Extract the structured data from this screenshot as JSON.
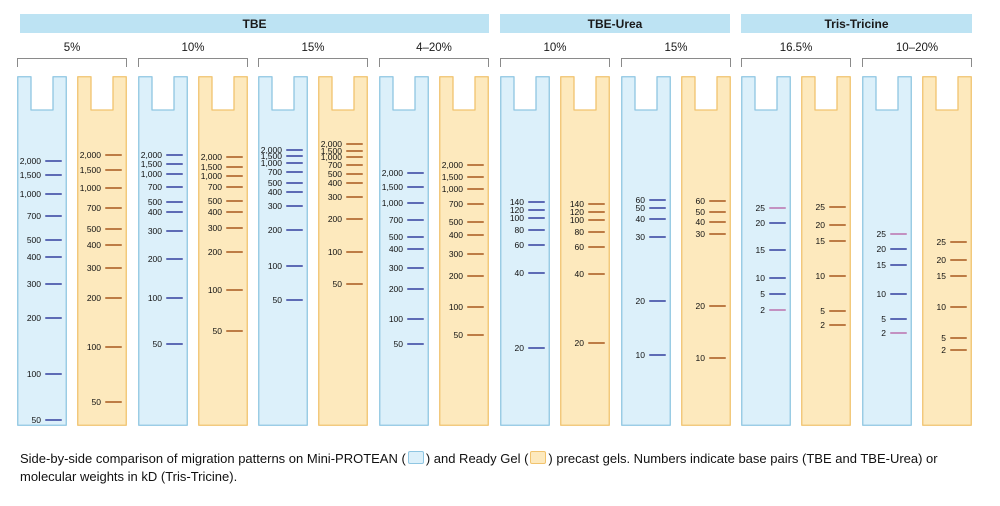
{
  "colors": {
    "header_bg": "#bde3f3",
    "mini_fill": "#dcf0fa",
    "mini_stroke": "#8fc6e2",
    "mini_band": "#5d6bb5",
    "ready_fill": "#fde9bd",
    "ready_stroke": "#f1c36e",
    "ready_band": "#bd7c45",
    "tris_band": "#c391c1"
  },
  "groups": [
    {
      "label": "TBE",
      "concentrations": [
        "5%",
        "10%",
        "15%",
        "4–20%"
      ]
    },
    {
      "label": "TBE-Urea",
      "concentrations": [
        "10%",
        "15%"
      ]
    },
    {
      "label": "Tris-Tricine",
      "concentrations": [
        "16.5%",
        "10–20%"
      ]
    }
  ],
  "lanes": [
    {
      "type": "mini",
      "bands": [
        {
          "label": "2,000",
          "pos": 85
        },
        {
          "label": "1,500",
          "pos": 99
        },
        {
          "label": "1,000",
          "pos": 118
        },
        {
          "label": "700",
          "pos": 140
        },
        {
          "label": "500",
          "pos": 164
        },
        {
          "label": "400",
          "pos": 181
        },
        {
          "label": "300",
          "pos": 208
        },
        {
          "label": "200",
          "pos": 242
        },
        {
          "label": "100",
          "pos": 298
        },
        {
          "label": "50",
          "pos": 344
        }
      ]
    },
    {
      "type": "ready",
      "bands": [
        {
          "label": "2,000",
          "pos": 79
        },
        {
          "label": "1,500",
          "pos": 94
        },
        {
          "label": "1,000",
          "pos": 112
        },
        {
          "label": "700",
          "pos": 132
        },
        {
          "label": "500",
          "pos": 153
        },
        {
          "label": "400",
          "pos": 169
        },
        {
          "label": "300",
          "pos": 192
        },
        {
          "label": "200",
          "pos": 222
        },
        {
          "label": "100",
          "pos": 271
        },
        {
          "label": "50",
          "pos": 326
        }
      ]
    },
    {
      "type": "mini",
      "bands": [
        {
          "label": "2,000",
          "pos": 79
        },
        {
          "label": "1,500",
          "pos": 88
        },
        {
          "label": "1,000",
          "pos": 98
        },
        {
          "label": "700",
          "pos": 111
        },
        {
          "label": "500",
          "pos": 126
        },
        {
          "label": "400",
          "pos": 136
        },
        {
          "label": "300",
          "pos": 155
        },
        {
          "label": "200",
          "pos": 183
        },
        {
          "label": "100",
          "pos": 222
        },
        {
          "label": "50",
          "pos": 268
        }
      ]
    },
    {
      "type": "ready",
      "bands": [
        {
          "label": "2,000",
          "pos": 81
        },
        {
          "label": "1,500",
          "pos": 91
        },
        {
          "label": "1,000",
          "pos": 100
        },
        {
          "label": "700",
          "pos": 111
        },
        {
          "label": "500",
          "pos": 125
        },
        {
          "label": "400",
          "pos": 136
        },
        {
          "label": "300",
          "pos": 152
        },
        {
          "label": "200",
          "pos": 176
        },
        {
          "label": "100",
          "pos": 214
        },
        {
          "label": "50",
          "pos": 255
        }
      ]
    },
    {
      "type": "mini",
      "bands": [
        {
          "label": "2,000",
          "pos": 74
        },
        {
          "label": "1,500",
          "pos": 80
        },
        {
          "label": "1,000",
          "pos": 87
        },
        {
          "label": "700",
          "pos": 96
        },
        {
          "label": "500",
          "pos": 107
        },
        {
          "label": "400",
          "pos": 116
        },
        {
          "label": "300",
          "pos": 130
        },
        {
          "label": "200",
          "pos": 154
        },
        {
          "label": "100",
          "pos": 190
        },
        {
          "label": "50",
          "pos": 224
        }
      ]
    },
    {
      "type": "ready",
      "bands": [
        {
          "label": "2,000",
          "pos": 68
        },
        {
          "label": "1,500",
          "pos": 75
        },
        {
          "label": "1,000",
          "pos": 81
        },
        {
          "label": "700",
          "pos": 89
        },
        {
          "label": "500",
          "pos": 98
        },
        {
          "label": "400",
          "pos": 107
        },
        {
          "label": "300",
          "pos": 121
        },
        {
          "label": "200",
          "pos": 143
        },
        {
          "label": "100",
          "pos": 176
        },
        {
          "label": "50",
          "pos": 208
        }
      ]
    },
    {
      "type": "mini",
      "bands": [
        {
          "label": "2,000",
          "pos": 97
        },
        {
          "label": "1,500",
          "pos": 111
        },
        {
          "label": "1,000",
          "pos": 127
        },
        {
          "label": "700",
          "pos": 144
        },
        {
          "label": "500",
          "pos": 161
        },
        {
          "label": "400",
          "pos": 173
        },
        {
          "label": "300",
          "pos": 192
        },
        {
          "label": "200",
          "pos": 213
        },
        {
          "label": "100",
          "pos": 243
        },
        {
          "label": "50",
          "pos": 268
        }
      ]
    },
    {
      "type": "ready",
      "bands": [
        {
          "label": "2,000",
          "pos": 89
        },
        {
          "label": "1,500",
          "pos": 101
        },
        {
          "label": "1,000",
          "pos": 113
        },
        {
          "label": "700",
          "pos": 128
        },
        {
          "label": "500",
          "pos": 146
        },
        {
          "label": "400",
          "pos": 159
        },
        {
          "label": "300",
          "pos": 178
        },
        {
          "label": "200",
          "pos": 200
        },
        {
          "label": "100",
          "pos": 231
        },
        {
          "label": "50",
          "pos": 259
        }
      ]
    },
    {
      "type": "mini",
      "bands": [
        {
          "label": "140",
          "pos": 126
        },
        {
          "label": "120",
          "pos": 134
        },
        {
          "label": "100",
          "pos": 142
        },
        {
          "label": "80",
          "pos": 154
        },
        {
          "label": "60",
          "pos": 169
        },
        {
          "label": "40",
          "pos": 197
        },
        {
          "label": "20",
          "pos": 272
        }
      ]
    },
    {
      "type": "ready",
      "bands": [
        {
          "label": "140",
          "pos": 128
        },
        {
          "label": "120",
          "pos": 136
        },
        {
          "label": "100",
          "pos": 144
        },
        {
          "label": "80",
          "pos": 156
        },
        {
          "label": "60",
          "pos": 171
        },
        {
          "label": "40",
          "pos": 198
        },
        {
          "label": "20",
          "pos": 267
        }
      ]
    },
    {
      "type": "mini",
      "bands": [
        {
          "label": "60",
          "pos": 124
        },
        {
          "label": "50",
          "pos": 132
        },
        {
          "label": "40",
          "pos": 143
        },
        {
          "label": "30",
          "pos": 161
        },
        {
          "label": "20",
          "pos": 225
        },
        {
          "label": "10",
          "pos": 279
        }
      ]
    },
    {
      "type": "ready",
      "bands": [
        {
          "label": "60",
          "pos": 125
        },
        {
          "label": "50",
          "pos": 136
        },
        {
          "label": "40",
          "pos": 146
        },
        {
          "label": "30",
          "pos": 158
        },
        {
          "label": "20",
          "pos": 230
        },
        {
          "label": "10",
          "pos": 282
        }
      ]
    },
    {
      "type": "mini",
      "bands": [
        {
          "label": "25",
          "pos": 132,
          "pink": true
        },
        {
          "label": "20",
          "pos": 147
        },
        {
          "label": "15",
          "pos": 174
        },
        {
          "label": "10",
          "pos": 202
        },
        {
          "label": "5",
          "pos": 218
        },
        {
          "label": "2",
          "pos": 234,
          "pink": true
        }
      ]
    },
    {
      "type": "ready",
      "bands": [
        {
          "label": "25",
          "pos": 131
        },
        {
          "label": "20",
          "pos": 149
        },
        {
          "label": "15",
          "pos": 165
        },
        {
          "label": "10",
          "pos": 200
        },
        {
          "label": "5",
          "pos": 235
        },
        {
          "label": "2",
          "pos": 249
        }
      ]
    },
    {
      "type": "mini",
      "bands": [
        {
          "label": "25",
          "pos": 158,
          "pink": true
        },
        {
          "label": "20",
          "pos": 173
        },
        {
          "label": "15",
          "pos": 189
        },
        {
          "label": "10",
          "pos": 218
        },
        {
          "label": "5",
          "pos": 243
        },
        {
          "label": "2",
          "pos": 257,
          "pink": true
        }
      ]
    },
    {
      "type": "ready",
      "bands": [
        {
          "label": "25",
          "pos": 166
        },
        {
          "label": "20",
          "pos": 184
        },
        {
          "label": "15",
          "pos": 200
        },
        {
          "label": "10",
          "pos": 231
        },
        {
          "label": "5",
          "pos": 262
        },
        {
          "label": "2",
          "pos": 274
        }
      ]
    }
  ],
  "caption": {
    "part1": "Side-by-side comparison of migration patterns on Mini-PROTEAN (",
    "part2": ") and Ready Gel (",
    "part3": ") precast gels. Numbers indicate base pairs (TBE and TBE-Urea) or molecular weights in kD (Tris-Tricine)."
  }
}
